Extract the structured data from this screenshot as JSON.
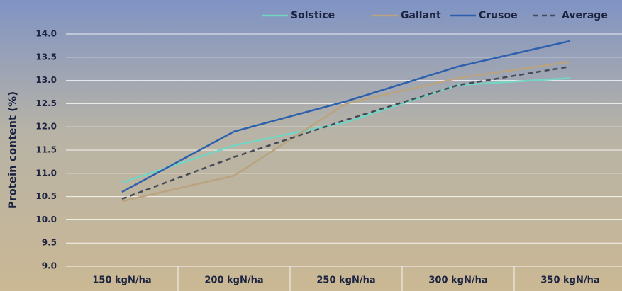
{
  "chart_data": {
    "type": "line",
    "y_label": "Protein content (%)",
    "categories": [
      "150 kgN/ha",
      "200 kgN/ha",
      "250 kgN/ha",
      "300 kgN/ha",
      "350 kgN/ha"
    ],
    "series": [
      {
        "name": "Solstice",
        "color": "#73d6c4",
        "dashed": false,
        "values": [
          10.8,
          11.6,
          12.1,
          12.9,
          13.05
        ]
      },
      {
        "name": "Gallant",
        "color": "#b9a47f",
        "dashed": false,
        "values": [
          10.4,
          10.95,
          12.5,
          13.05,
          13.4
        ]
      },
      {
        "name": "Crusoe",
        "color": "#2c5fae",
        "dashed": false,
        "values": [
          10.6,
          11.9,
          12.55,
          13.3,
          13.85
        ]
      },
      {
        "name": "Average",
        "color": "#464a58",
        "dashed": true,
        "values": [
          10.45,
          11.35,
          12.15,
          12.9,
          13.3
        ]
      }
    ],
    "ylim": [
      9.0,
      14.0
    ],
    "yticks": [
      {
        "value": 9,
        "label": "9.0"
      },
      9.5,
      {
        "value": 10,
        "label": "10.0"
      },
      10.5,
      {
        "value": 11,
        "label": "11.0"
      },
      11.5,
      {
        "value": 12,
        "label": "12.0"
      },
      12.5,
      {
        "value": 13,
        "label": "13.0"
      },
      13.5,
      {
        "value": 14,
        "label": "14.0"
      }
    ],
    "grid": true
  }
}
